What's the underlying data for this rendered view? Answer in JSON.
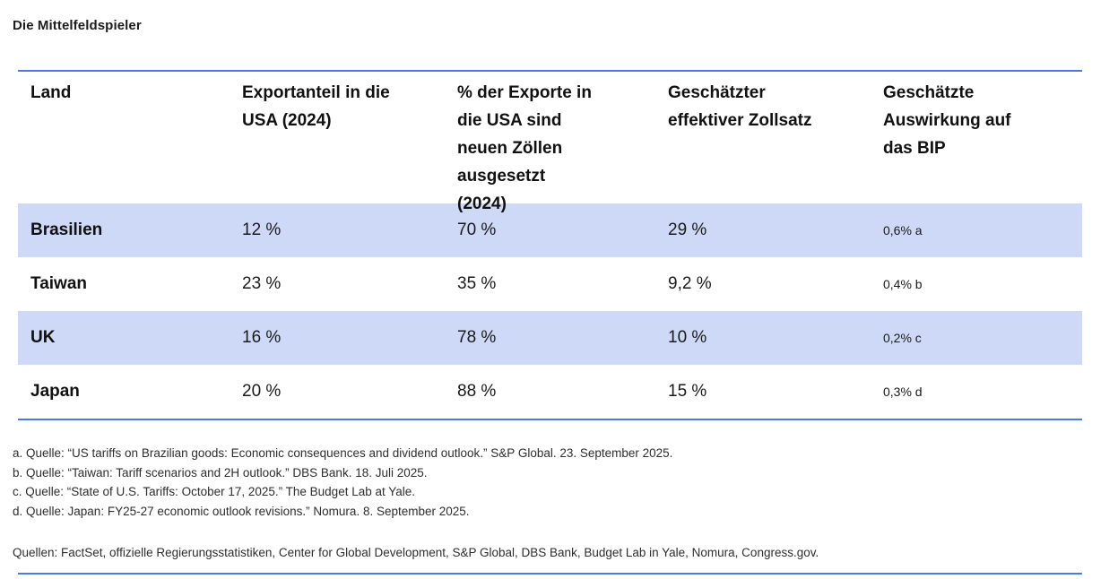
{
  "title": "Die Mittelfeldspieler",
  "chart_data": {
    "type": "table",
    "title": "Die Mittelfeldspieler",
    "columns": [
      "Land",
      "Exportanteil in die USA (2024)",
      "% der Exporte in die USA sind neuen Zöllen ausgesetzt (2024)",
      "Geschätzter effektiver Zollsatz",
      "Geschätzte Auswirkung auf das BIP"
    ],
    "rows": [
      [
        "Brasilien",
        "12 %",
        "70 %",
        "29 %",
        "0,6% a"
      ],
      [
        "Taiwan",
        "23 %",
        "35 %",
        "9,2 %",
        "0,4% b"
      ],
      [
        "UK",
        "16 %",
        "78 %",
        "10 %",
        "0,2% c"
      ],
      [
        "Japan",
        "20 %",
        "88 %",
        "15 %",
        "0,3% d"
      ]
    ],
    "highlighted_rows": [
      0,
      2
    ],
    "layout": {
      "row_striping": "odd rows light blue",
      "rules": "blue horizontal rules above header, below last row and at page bottom"
    }
  },
  "footnotes": [
    "a. Quelle: “US tariffs on Brazilian goods: Economic consequences and dividend outlook.” S&P Global. 23. September 2025.",
    "b. Quelle: “Taiwan: Tariff scenarios and 2H outlook.” DBS Bank. 18. Juli 2025.",
    "c. Quelle: “State of U.S. Tariffs: October 17, 2025.” The Budget Lab at Yale.",
    "d. Quelle: Japan: FY25-27 economic outlook revisions.” Nomura. 8. September 2025."
  ],
  "sources_line": "Quellen: FactSet, offizielle Regierungsstatistiken, Center for Global Development, S&P Global, DBS Bank, Budget Lab in Yale, Nomura, Congress.gov.",
  "colors": {
    "accent_rule": "#4a7be5",
    "row_highlight": "#cdd9f6",
    "text": "#1a1a1a"
  }
}
